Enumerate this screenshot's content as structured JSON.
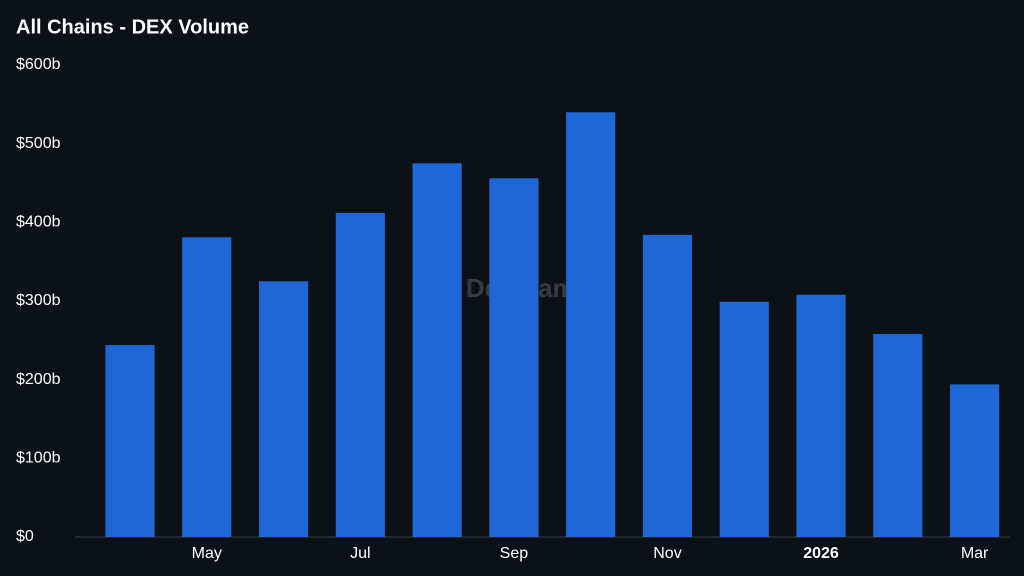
{
  "chart_data": {
    "type": "bar",
    "title": "All Chains - DEX Volume",
    "watermark": "DefiLlama",
    "categories": [
      null,
      "May",
      null,
      "Jul",
      null,
      "Sep",
      null,
      "Nov",
      null,
      "2026",
      null,
      "Mar"
    ],
    "values": [
      244,
      381,
      325,
      412,
      475,
      456,
      540,
      384,
      299,
      308,
      258,
      194
    ],
    "color": "#1f66d6",
    "ylim": [
      0,
      600
    ],
    "yticks": [
      {
        "value": 0,
        "label": "$0"
      },
      {
        "value": 100,
        "label": "$100b"
      },
      {
        "value": 200,
        "label": "$200b"
      },
      {
        "value": 300,
        "label": "$300b"
      },
      {
        "value": 400,
        "label": "$400b"
      },
      {
        "value": 500,
        "label": "$500b"
      },
      {
        "value": 600,
        "label": "$600b"
      }
    ],
    "grid": false
  }
}
